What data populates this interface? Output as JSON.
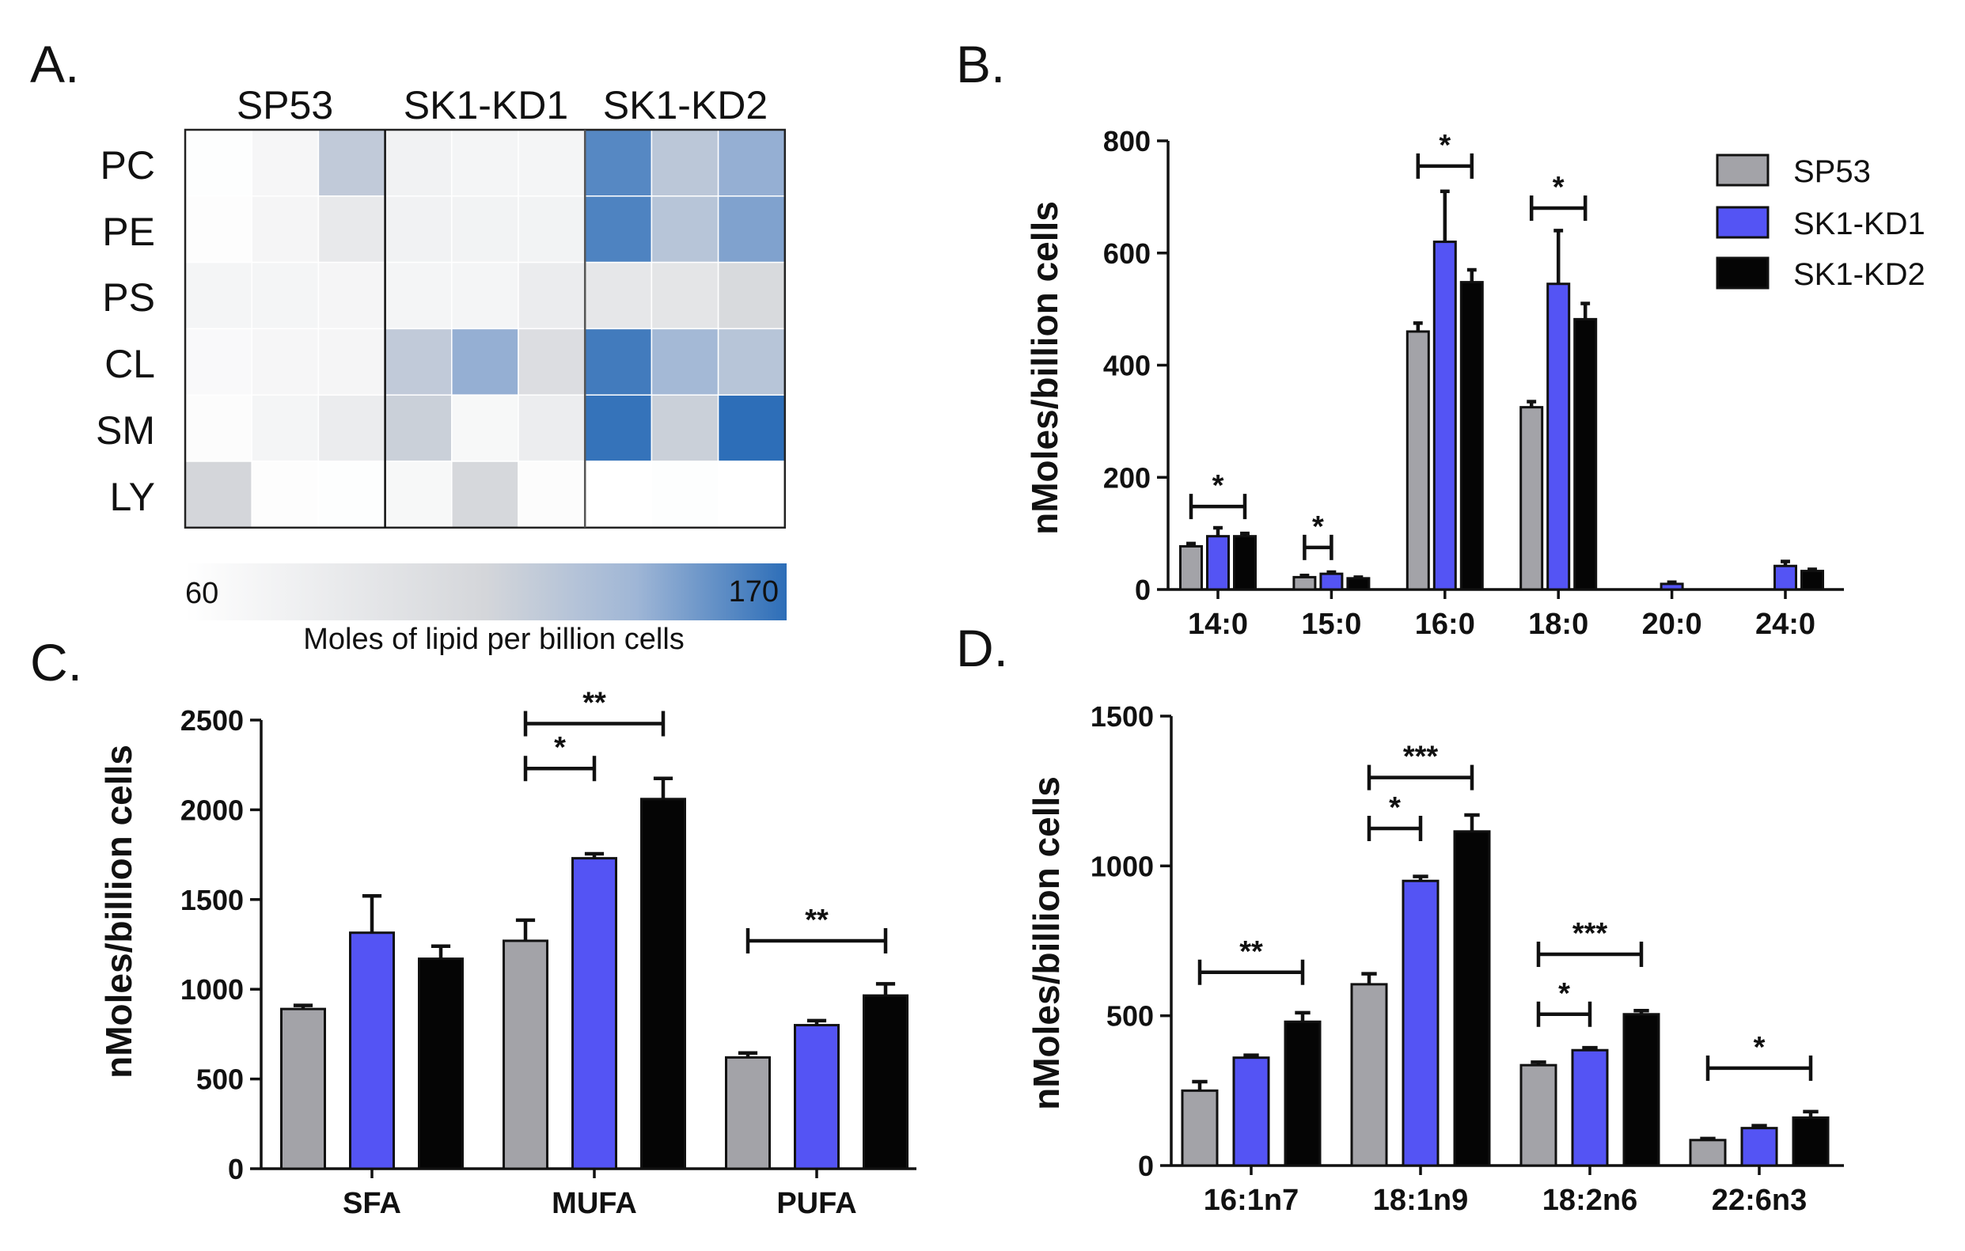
{
  "colors": {
    "SP53": "#a3a3a8",
    "SK1-KD1": "#5454f4",
    "SK1-KD2": "#050505"
  },
  "panel_labels": [
    "A.",
    "B.",
    "C.",
    "D."
  ],
  "chart_data": [
    {
      "panel": "A.",
      "type": "heatmap",
      "groups": [
        "SP53",
        "SK1-KD1",
        "SK1-KD2"
      ],
      "rows": [
        "PC",
        "PE",
        "PS",
        "CL",
        "SM",
        "LY"
      ],
      "values": [
        [
          62,
          72,
          125,
          78,
          74,
          74,
          160,
          128,
          145
        ],
        [
          63,
          73,
          90,
          78,
          76,
          76,
          162,
          130,
          150
        ],
        [
          74,
          74,
          73,
          74,
          74,
          85,
          92,
          95,
          110
        ],
        [
          68,
          72,
          73,
          125,
          145,
          105,
          165,
          140,
          130
        ],
        [
          64,
          74,
          85,
          120,
          70,
          84,
          168,
          120,
          170
        ],
        [
          115,
          63,
          62,
          70,
          112,
          64,
          60,
          62,
          60
        ]
      ],
      "colorbar": {
        "min": 60,
        "max": 170,
        "min_label": "60",
        "max_label": "170",
        "label": "Moles of lipid per billion cells"
      }
    },
    {
      "panel": "B.",
      "type": "bar",
      "categories": [
        "14:0",
        "15:0",
        "16:0",
        "18:0",
        "20:0",
        "24:0"
      ],
      "series": [
        {
          "name": "SP53",
          "values": [
            77,
            22,
            460,
            325,
            0,
            0
          ],
          "errors": [
            5,
            3,
            15,
            10,
            0,
            0
          ]
        },
        {
          "name": "SK1-KD1",
          "values": [
            95,
            28,
            620,
            545,
            10,
            42
          ],
          "errors": [
            15,
            3,
            90,
            95,
            3,
            8
          ]
        },
        {
          "name": "SK1-KD2",
          "values": [
            95,
            20,
            548,
            482,
            0,
            33
          ],
          "errors": [
            5,
            2,
            22,
            28,
            0,
            3
          ]
        }
      ],
      "ylabel": "nMoles/billion cells",
      "ylim": [
        0,
        800
      ],
      "yticks": [
        0,
        200,
        400,
        600,
        800
      ],
      "ytick_labels": [
        "0",
        "200",
        "400",
        "600",
        "800"
      ],
      "legend": [
        "SP53",
        "SK1-KD1",
        "SK1-KD2"
      ],
      "legend_position": "top-right",
      "significance": [
        {
          "category": 0,
          "from": 0,
          "to": 2,
          "label": "*",
          "y": 148
        },
        {
          "category": 1,
          "from": 0,
          "to": 1,
          "label": "*",
          "y": 75
        },
        {
          "category": 2,
          "from": 0,
          "to": 2,
          "label": "*",
          "y": 755
        },
        {
          "category": 3,
          "from": 0,
          "to": 2,
          "label": "*",
          "y": 680
        }
      ]
    },
    {
      "panel": "C.",
      "type": "bar",
      "categories": [
        "SFA",
        "MUFA",
        "PUFA"
      ],
      "series": [
        {
          "name": "SP53",
          "values": [
            890,
            1270,
            620
          ],
          "errors": [
            20,
            115,
            25
          ]
        },
        {
          "name": "SK1-KD1",
          "values": [
            1315,
            1730,
            800
          ],
          "errors": [
            205,
            25,
            25
          ]
        },
        {
          "name": "SK1-KD2",
          "values": [
            1170,
            2060,
            965
          ],
          "errors": [
            70,
            115,
            65
          ]
        }
      ],
      "ylabel": "nMoles/billion cells",
      "ylim": [
        0,
        2500
      ],
      "yticks": [
        0,
        500,
        1000,
        1500,
        2000,
        2500
      ],
      "ytick_labels": [
        "0",
        "500",
        "1000",
        "1500",
        "2000",
        "2500"
      ],
      "significance": [
        {
          "category": 1,
          "from": 0,
          "to": 2,
          "label": "**",
          "y": 2480
        },
        {
          "category": 1,
          "from": 0,
          "to": 1,
          "label": "*",
          "y": 2230
        },
        {
          "category": 2,
          "from": 0,
          "to": 2,
          "label": "**",
          "y": 1270
        }
      ]
    },
    {
      "panel": "D.",
      "type": "bar",
      "categories": [
        "16:1n7",
        "18:1n9",
        "18:2n6",
        "22:6n3"
      ],
      "series": [
        {
          "name": "SP53",
          "values": [
            250,
            605,
            335,
            85
          ],
          "errors": [
            30,
            35,
            10,
            5
          ]
        },
        {
          "name": "SK1-KD1",
          "values": [
            360,
            950,
            385,
            125
          ],
          "errors": [
            8,
            15,
            8,
            8
          ]
        },
        {
          "name": "SK1-KD2",
          "values": [
            480,
            1115,
            505,
            160
          ],
          "errors": [
            30,
            55,
            12,
            20
          ]
        }
      ],
      "ylabel": "nMoles/billion cells",
      "ylim": [
        0,
        1500
      ],
      "yticks": [
        0,
        500,
        1000,
        1500
      ],
      "ytick_labels": [
        "0",
        "500",
        "1000",
        "1500"
      ],
      "significance": [
        {
          "category": 0,
          "from": 0,
          "to": 2,
          "label": "**",
          "y": 645
        },
        {
          "category": 1,
          "from": 0,
          "to": 2,
          "label": "***",
          "y": 1295
        },
        {
          "category": 1,
          "from": 0,
          "to": 1,
          "label": "*",
          "y": 1125
        },
        {
          "category": 2,
          "from": 0,
          "to": 2,
          "label": "***",
          "y": 705
        },
        {
          "category": 2,
          "from": 0,
          "to": 1,
          "label": "*",
          "y": 505
        },
        {
          "category": 3,
          "from": 0,
          "to": 2,
          "label": "*",
          "y": 325
        }
      ]
    }
  ]
}
